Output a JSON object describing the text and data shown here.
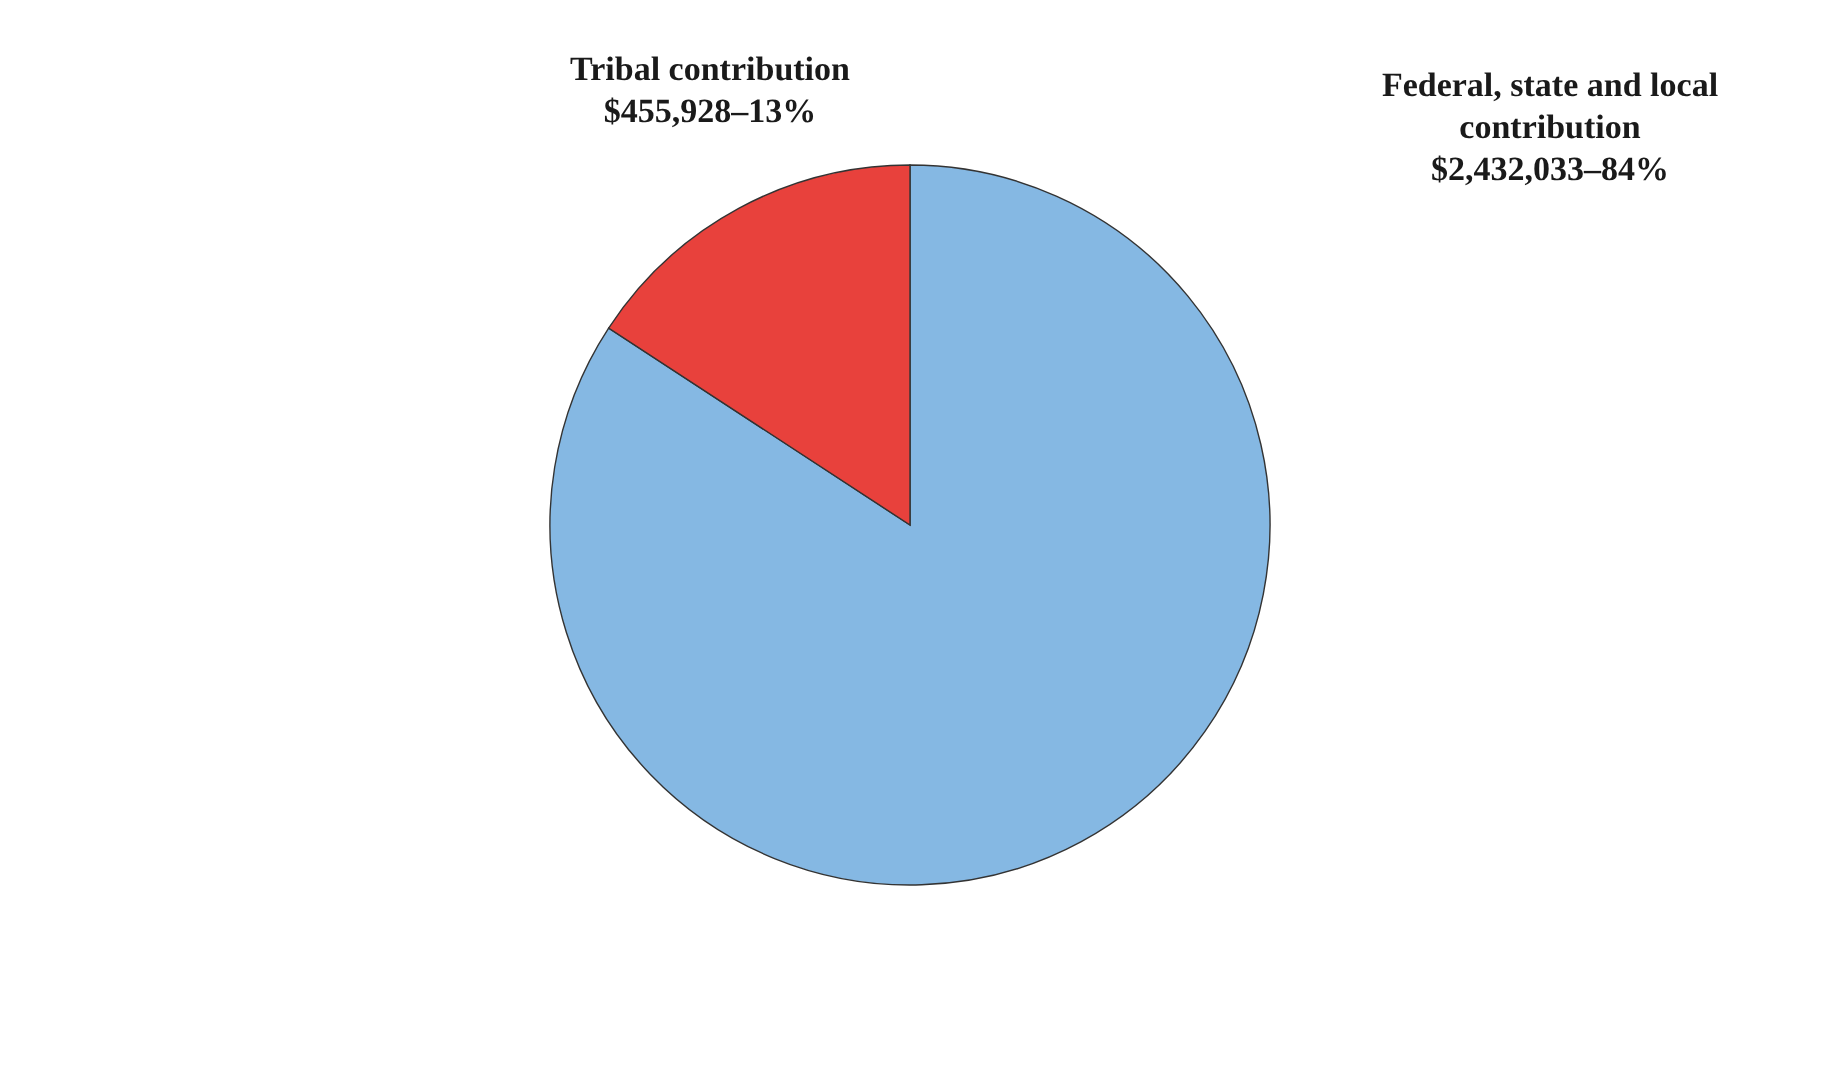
{
  "chart_data": {
    "type": "pie",
    "categories": [
      "Federal, state and local contribution",
      "Tribal contribution"
    ],
    "values": [
      2432033,
      455928
    ],
    "colors": [
      "#85b8e3",
      "#e8413c"
    ],
    "value_labels": [
      "$2,432,033–84%",
      "$455,928–13%"
    ]
  }
}
